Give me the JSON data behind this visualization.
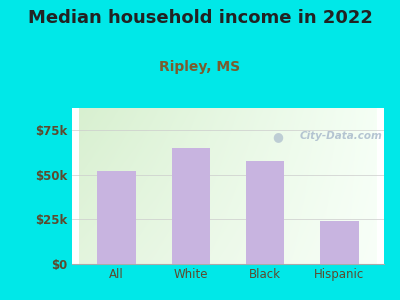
{
  "title": "Median household income in 2022",
  "subtitle": "Ripley, MS",
  "categories": [
    "All",
    "White",
    "Black",
    "Hispanic"
  ],
  "values": [
    52000,
    65000,
    58000,
    24000
  ],
  "bar_color": "#c8b4e0",
  "background_color": "#00e8e8",
  "plot_bg_color_top_left": "#d8f0d0",
  "plot_bg_color_right": "#f5fff5",
  "plot_bg_color_bottom": "#ffffff",
  "title_color": "#222222",
  "subtitle_color": "#7a5c2e",
  "tick_label_color": "#5c4a2e",
  "axis_line_color": "#aaaaaa",
  "grid_color": "#cccccc",
  "ylim": [
    0,
    87500
  ],
  "yticks": [
    0,
    25000,
    50000,
    75000
  ],
  "ytick_labels": [
    "$0",
    "$25k",
    "$50k",
    "$75k"
  ],
  "watermark_text": "City-Data.com",
  "watermark_color": "#aabbcc",
  "title_fontsize": 13,
  "subtitle_fontsize": 10,
  "tick_fontsize": 8.5
}
